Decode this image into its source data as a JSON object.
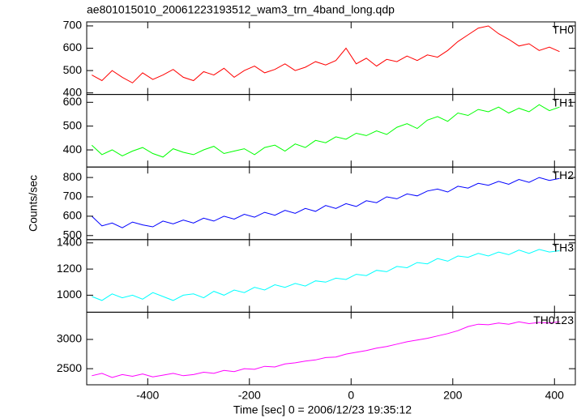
{
  "chart_data": {
    "type": "line",
    "title": "ae801015010_20061223193512_wam3_trn_4band_long.qdp",
    "xlabel": "Time [sec] 0 = 2006/12/23 19:35:12",
    "ylabel": "Counts/sec",
    "xlim": [
      -520,
      441
    ],
    "xticks": [
      -400,
      -200,
      0,
      200,
      400
    ],
    "x": [
      -510,
      -490,
      -470,
      -450,
      -430,
      -410,
      -390,
      -370,
      -350,
      -330,
      -310,
      -290,
      -270,
      -250,
      -230,
      -210,
      -190,
      -170,
      -150,
      -130,
      -110,
      -90,
      -70,
      -50,
      -30,
      -10,
      10,
      30,
      50,
      70,
      90,
      110,
      130,
      150,
      170,
      190,
      210,
      230,
      250,
      270,
      290,
      310,
      330,
      350,
      370,
      390,
      410
    ],
    "series": [
      {
        "name": "TH0",
        "color": "#ff0000",
        "ylim": [
          393,
          718
        ],
        "yticks": [
          400,
          500,
          600,
          700
        ],
        "values": [
          480,
          455,
          500,
          470,
          445,
          490,
          460,
          480,
          505,
          470,
          455,
          495,
          480,
          510,
          470,
          500,
          520,
          490,
          505,
          530,
          500,
          515,
          540,
          525,
          545,
          600,
          530,
          555,
          520,
          550,
          540,
          565,
          545,
          570,
          560,
          590,
          630,
          660,
          690,
          700,
          665,
          640,
          610,
          620,
          590,
          605,
          585
        ]
      },
      {
        "name": "TH1",
        "color": "#00ff00",
        "ylim": [
          328,
          633
        ],
        "yticks": [
          400,
          500,
          600
        ],
        "values": [
          420,
          380,
          400,
          375,
          395,
          410,
          385,
          370,
          405,
          390,
          380,
          400,
          415,
          385,
          395,
          405,
          380,
          410,
          420,
          395,
          425,
          410,
          440,
          430,
          455,
          445,
          470,
          460,
          480,
          465,
          495,
          510,
          490,
          525,
          540,
          520,
          555,
          545,
          570,
          560,
          580,
          555,
          575,
          560,
          590,
          565,
          580
        ]
      },
      {
        "name": "TH2",
        "color": "#0000ff",
        "ylim": [
          479,
          854
        ],
        "yticks": [
          500,
          600,
          700,
          800
        ],
        "values": [
          600,
          550,
          565,
          540,
          570,
          555,
          545,
          575,
          560,
          580,
          565,
          590,
          575,
          600,
          585,
          610,
          595,
          620,
          605,
          630,
          615,
          640,
          625,
          655,
          640,
          665,
          650,
          680,
          670,
          700,
          690,
          715,
          705,
          730,
          740,
          725,
          755,
          745,
          770,
          760,
          780,
          765,
          790,
          775,
          800,
          785,
          795
        ]
      },
      {
        "name": "TH3",
        "color": "#00ffff",
        "ylim": [
          870,
          1425
        ],
        "yticks": [
          1000,
          1200,
          1400
        ],
        "values": [
          990,
          960,
          1010,
          980,
          1000,
          970,
          1020,
          990,
          960,
          1000,
          1010,
          980,
          1030,
          1000,
          1040,
          1020,
          1060,
          1040,
          1080,
          1060,
          1090,
          1070,
          1110,
          1100,
          1130,
          1120,
          1160,
          1150,
          1190,
          1180,
          1220,
          1210,
          1250,
          1240,
          1280,
          1260,
          1300,
          1290,
          1320,
          1300,
          1330,
          1310,
          1345,
          1320,
          1350,
          1330,
          1340
        ]
      },
      {
        "name": "TH0123",
        "color": "#ff00ff",
        "ylim": [
          2225,
          3465
        ],
        "yticks": [
          2500,
          3000
        ],
        "values": [
          2380,
          2420,
          2350,
          2400,
          2370,
          2410,
          2360,
          2390,
          2420,
          2380,
          2400,
          2440,
          2420,
          2470,
          2450,
          2500,
          2490,
          2540,
          2530,
          2580,
          2600,
          2630,
          2650,
          2690,
          2700,
          2750,
          2780,
          2810,
          2850,
          2880,
          2920,
          2960,
          2990,
          3020,
          3060,
          3100,
          3150,
          3220,
          3260,
          3250,
          3280,
          3260,
          3300,
          3270,
          3290,
          3280,
          3300
        ]
      }
    ]
  }
}
